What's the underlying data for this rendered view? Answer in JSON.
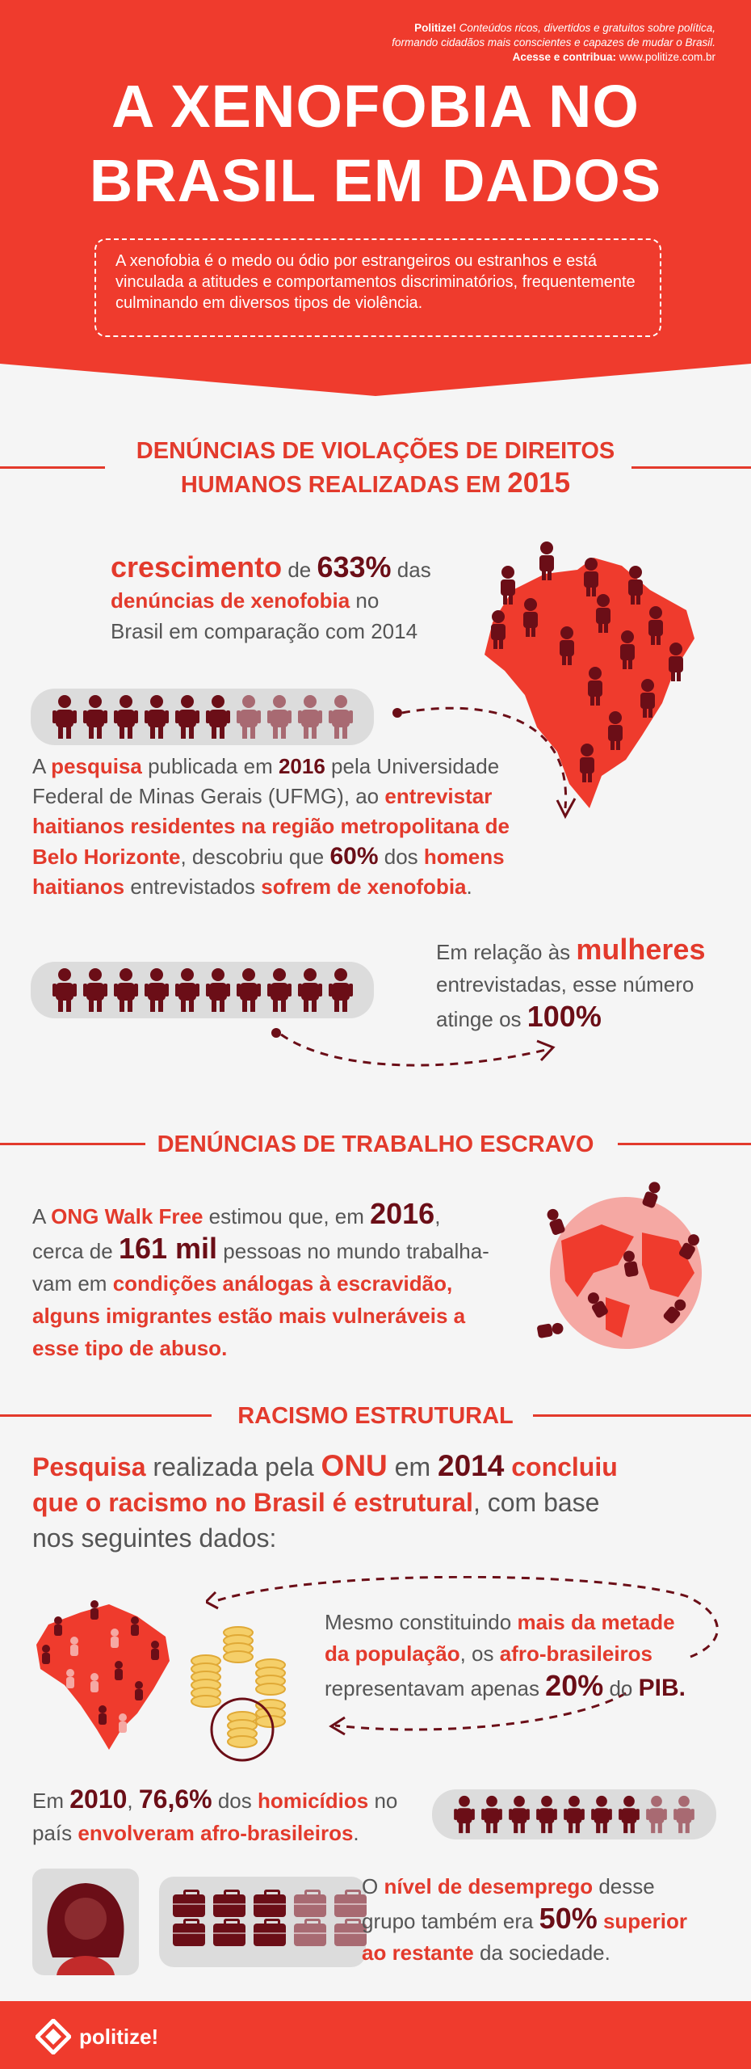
{
  "header": {
    "brand_name": "Politize!",
    "brand_line1": " Conteúdos ricos, divertidos e gratuitos sobre política,",
    "brand_line2": "formando cidadãos mais conscientes e capazes de mudar o Brasil.",
    "brand_line3_bold": "Acesse e contribua:",
    "brand_line3_url": " www.politize.com.br",
    "title_line1": "A XENOFOBIA NO",
    "title_line2": "BRASIL EM DADOS",
    "intro": "A xenofobia é o medo ou ódio por estrangeiros ou estranhos e está vinculada a atitudes e comportamentos discriminatórios, frequentemente culminando em diversos tipos de violência."
  },
  "section1": {
    "heading_line1": "DENÚNCIAS DE VIOLAÇÕES DE DIREITOS",
    "heading_line2_a": "HUMANOS REALIZADAS EM ",
    "heading_line2_year": "2015",
    "growth": {
      "w1": "crescimento",
      "w2": " de ",
      "w3": "633%",
      "w4": " das",
      "w5": "denúncias de xenofobia",
      "w6": " no",
      "w7": "Brasil em comparação com 2014"
    },
    "men_ratio": 0.6,
    "women_ratio": 1.0,
    "research": {
      "p1": "A ",
      "p2": "pesquisa",
      "p3": " publicada em ",
      "p4": "2016",
      "p5": " pela Universidade",
      "p6": "Federal de Minas Gerais (UFMG), ao ",
      "p7": "entrevistar",
      "p8": "haitianos residentes na região metropolitana de",
      "p9": "Belo Horizonte",
      "p10": ", descobriu que ",
      "p11": "60%",
      "p12": " dos ",
      "p13": "homens",
      "p14": "haitianos",
      "p15": " entrevistados ",
      "p16": "sofrem de xenofobia",
      "p17": "."
    },
    "women": {
      "a": "Em relação às ",
      "b": "mulheres",
      "c": "entrevistadas, esse número",
      "d": "atinge os ",
      "e": "100%"
    }
  },
  "section2": {
    "heading": "DENÚNCIAS DE TRABALHO ESCRAVO",
    "s1": "A ",
    "s2": "ONG Walk Free",
    "s3": " estimou que, em ",
    "s4": "2016",
    "s5": ",",
    "s6": "cerca de ",
    "s7": "161 mil",
    "s8": " pessoas no mundo trabalha-",
    "s9": "vam em ",
    "s10": "condições análogas à escravidão,",
    "s11": "alguns imigrantes estão mais vulneráveis a",
    "s12": "esse tipo de abuso."
  },
  "section3": {
    "heading": "RACISMO ESTRUTURAL",
    "lead": {
      "a": "Pesquisa",
      "b": " realizada pela ",
      "c": "ONU",
      "d": " em ",
      "e": "2014",
      "f": " concluiu",
      "g": "que o racismo no Brasil é estrutural",
      "h": ", com base",
      "i": "nos seguintes dados:"
    },
    "pib": {
      "a": "Mesmo constituindo ",
      "b": "mais da metade",
      "c": "da população",
      "d": ", os ",
      "e": "afro-brasileiros",
      "f": "representavam apenas ",
      "g": "20%",
      "h": " do ",
      "i": "PIB."
    },
    "homicide_ratio": 0.766,
    "homicide": {
      "a": "Em ",
      "b": "2010",
      "c": ", ",
      "d": "76,6%",
      "e": " dos ",
      "f": "homicídios",
      "g": " no",
      "h": "país ",
      "i": "envolveram afro-brasileiros",
      "j": "."
    },
    "unemployment": {
      "a": "O ",
      "b": "nível de desemprego",
      "c": " desse",
      "d": "grupo também era ",
      "e": "50%",
      "f": " superior",
      "g": "ao restante",
      "h": " da sociedade."
    }
  },
  "footer": {
    "logo": "politize!"
  },
  "colors": {
    "brand_red": "#ef3b2d",
    "dark_maroon": "#6b0e17",
    "light_person": "#a86a72",
    "background": "#f5f5f5"
  }
}
